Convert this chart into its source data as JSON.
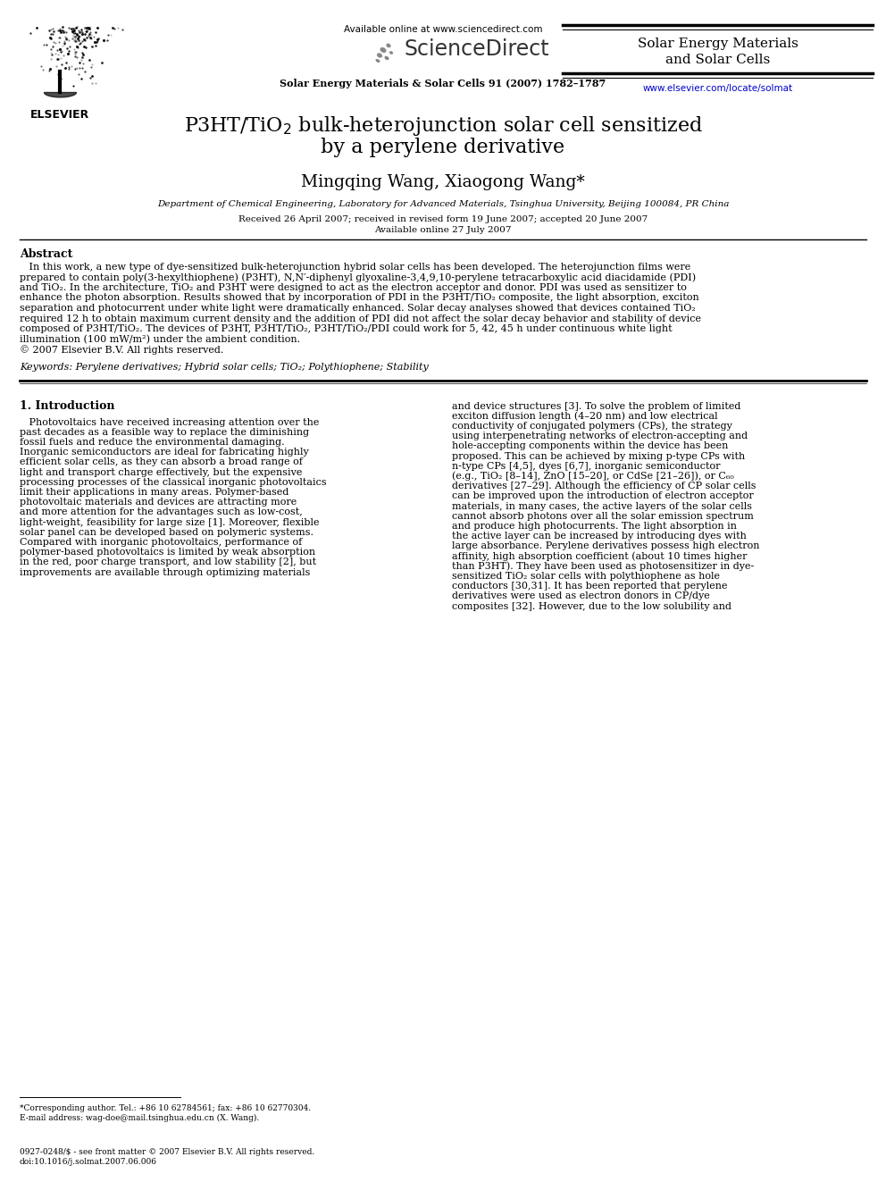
{
  "bg_color": "#ffffff",
  "page_width": 9.92,
  "page_height": 13.23,
  "dpi": 100,
  "header": {
    "available_online": "Available online at www.sciencedirect.com",
    "sciencedirect_text": "ScienceDirect",
    "journal_name_right_l1": "Solar Energy Materials",
    "journal_name_right_l2": "and Solar Cells",
    "journal_cite": "Solar Energy Materials & Solar Cells 91 (2007) 1782–1787",
    "journal_url": "www.elsevier.com/locate/solmat",
    "elsevier_label": "ELSEVIER"
  },
  "title_line1": "P3HT/TiO$_2$ bulk-heterojunction solar cell sensitized",
  "title_line2": "by a perylene derivative",
  "authors": "Mingqing Wang, Xiaogong Wang*",
  "affiliation": "Department of Chemical Engineering, Laboratory for Advanced Materials, Tsinghua University, Beijing 100084, PR China",
  "received": "Received 26 April 2007; received in revised form 19 June 2007; accepted 20 June 2007",
  "available_online_paper": "Available online 27 July 2007",
  "abstract_label": "Abstract",
  "abstract_text_lines": [
    "   In this work, a new type of dye-sensitized bulk-heterojunction hybrid solar cells has been developed. The heterojunction films were",
    "prepared to contain poly(3-hexylthiophene) (P3HT), N,N′-diphenyl glyoxaline-3,4,9,10-perylene tetracarboxylic acid diacidamide (PDI)",
    "and TiO₂. In the architecture, TiO₂ and P3HT were designed to act as the electron acceptor and donor. PDI was used as sensitizer to",
    "enhance the photon absorption. Results showed that by incorporation of PDI in the P3HT/TiO₂ composite, the light absorption, exciton",
    "separation and photocurrent under white light were dramatically enhanced. Solar decay analyses showed that devices contained TiO₂",
    "required 12 h to obtain maximum current density and the addition of PDI did not affect the solar decay behavior and stability of device",
    "composed of P3HT/TiO₂. The devices of P3HT, P3HT/TiO₂, P3HT/TiO₂/PDI could work for 5, 42, 45 h under continuous white light",
    "illumination (100 mW/m²) under the ambient condition.",
    "© 2007 Elsevier B.V. All rights reserved."
  ],
  "keywords": "Keywords: Perylene derivatives; Hybrid solar cells; TiO₂; Polythiophene; Stability",
  "section1_title": "1. Introduction",
  "intro_left_lines": [
    "   Photovoltaics have received increasing attention over the",
    "past decades as a feasible way to replace the diminishing",
    "fossil fuels and reduce the environmental damaging.",
    "Inorganic semiconductors are ideal for fabricating highly",
    "efficient solar cells, as they can absorb a broad range of",
    "light and transport charge effectively, but the expensive",
    "processing processes of the classical inorganic photovoltaics",
    "limit their applications in many areas. Polymer-based",
    "photovoltaic materials and devices are attracting more",
    "and more attention for the advantages such as low-cost,",
    "light-weight, feasibility for large size [1]. Moreover, flexible",
    "solar panel can be developed based on polymeric systems.",
    "Compared with inorganic photovoltaics, performance of",
    "polymer-based photovoltaics is limited by weak absorption",
    "in the red, poor charge transport, and low stability [2], but",
    "improvements are available through optimizing materials"
  ],
  "intro_right_lines": [
    "and device structures [3]. To solve the problem of limited",
    "exciton diffusion length (4–20 nm) and low electrical",
    "conductivity of conjugated polymers (CPs), the strategy",
    "using interpenetrating networks of electron-accepting and",
    "hole-accepting components within the device has been",
    "proposed. This can be achieved by mixing p-type CPs with",
    "n-type CPs [4,5], dyes [6,7], inorganic semiconductor",
    "(e.g., TiO₂ [8–14], ZnO [15–20], or CdSe [21–26]), or C₆₀",
    "derivatives [27–29]. Although the efficiency of CP solar cells",
    "can be improved upon the introduction of electron acceptor",
    "materials, in many cases, the active layers of the solar cells",
    "cannot absorb photons over all the solar emission spectrum",
    "and produce high photocurrents. The light absorption in",
    "the active layer can be increased by introducing dyes with",
    "large absorbance. Perylene derivatives possess high electron",
    "affinity, high absorption coefficient (about 10 times higher",
    "than P3HT). They have been used as photosensitizer in dye-",
    "sensitized TiO₂ solar cells with polythiophene as hole",
    "conductors [30,31]. It has been reported that perylene",
    "derivatives were used as electron donors in CP/dye",
    "composites [32]. However, due to the low solubility and"
  ],
  "footnote_lines": [
    "*Corresponding author. Tel.: +86 10 62784561; fax: +86 10 62770304.",
    "E-mail address: wag-doe@mail.tsinghua.edu.cn (X. Wang)."
  ],
  "copyright_footer_lines": [
    "0927-0248/$ - see front matter © 2007 Elsevier B.V. All rights reserved.",
    "doi:10.1016/j.solmat.2007.06.006"
  ],
  "text_color": "#000000",
  "link_color": "#0000cc"
}
